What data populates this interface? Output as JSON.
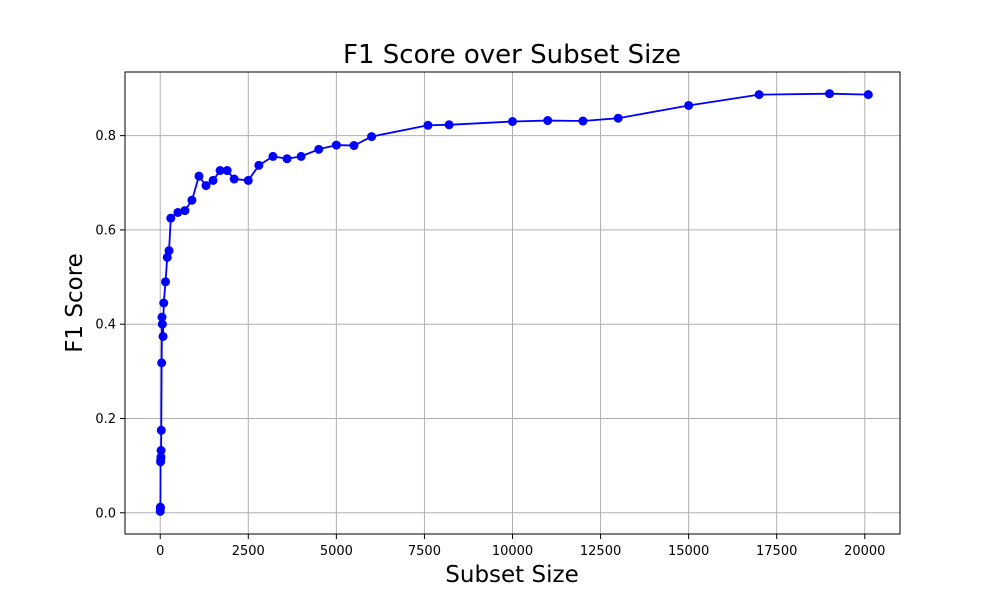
{
  "chart_data": {
    "type": "line",
    "title": "F1 Score over Subset Size",
    "xlabel": "Subset Size",
    "ylabel": "F1 Score",
    "xlim": [
      -1000,
      21000
    ],
    "ylim": [
      -0.045,
      0.935
    ],
    "x_ticks": [
      0,
      2500,
      5000,
      7500,
      10000,
      12500,
      15000,
      17500,
      20000
    ],
    "y_ticks": [
      0.0,
      0.2,
      0.4,
      0.6,
      0.8
    ],
    "x_tick_labels": [
      "0",
      "2500",
      "5000",
      "7500",
      "10000",
      "12500",
      "15000",
      "17500",
      "20000"
    ],
    "y_tick_labels": [
      "0.0",
      "0.2",
      "0.4",
      "0.6",
      "0.8"
    ],
    "grid": true,
    "legend": "none",
    "series": [
      {
        "color": "#0000ff",
        "marker": "circle",
        "x": [
          1,
          2,
          5,
          10,
          15,
          20,
          25,
          30,
          40,
          50,
          60,
          80,
          100,
          150,
          200,
          250,
          300,
          500,
          700,
          900,
          1100,
          1300,
          1500,
          1700,
          1900,
          2100,
          2500,
          2800,
          3200,
          3600,
          4000,
          4500,
          5000,
          5500,
          6000,
          7600,
          8200,
          10000,
          11000,
          12000,
          13000,
          15000,
          17000,
          19000,
          20100
        ],
        "y": [
          0.003,
          0.008,
          0.012,
          0.108,
          0.112,
          0.118,
          0.132,
          0.175,
          0.318,
          0.415,
          0.4,
          0.374,
          0.445,
          0.49,
          0.542,
          0.556,
          0.625,
          0.637,
          0.641,
          0.663,
          0.714,
          0.694,
          0.705,
          0.726,
          0.726,
          0.708,
          0.705,
          0.737,
          0.756,
          0.751,
          0.756,
          0.771,
          0.78,
          0.779,
          0.798,
          0.822,
          0.823,
          0.83,
          0.832,
          0.831,
          0.837,
          0.864,
          0.887,
          0.889,
          0.887
        ]
      }
    ]
  }
}
